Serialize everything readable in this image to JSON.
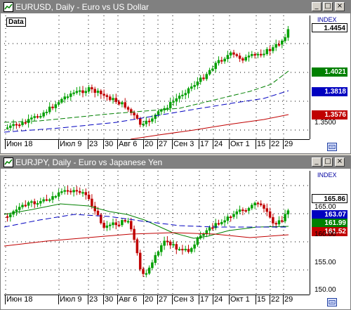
{
  "top_chart": {
    "title": "EURUSD, Daily - Euro vs US Dollar",
    "data_label": "Data",
    "index_label": "INDEX",
    "y_labels": [
      "1.3500"
    ],
    "price_tags": [
      {
        "value": "1.4454",
        "color": "#ffffff",
        "text_color": "#000000"
      },
      {
        "value": "1.4021",
        "color": "#008000",
        "text_color": "#ffffff"
      },
      {
        "value": "1.3818",
        "color": "#0000c0",
        "text_color": "#ffffff"
      },
      {
        "value": "1.3576",
        "color": "#c00000",
        "text_color": "#ffffff"
      }
    ],
    "x_labels": [
      "Июн 18",
      "Июл 9",
      "23",
      "30",
      "Авг 6",
      "20",
      "27",
      "Сен 3",
      "17",
      "24",
      "Окт 1",
      "15",
      "22",
      "29"
    ]
  },
  "bottom_chart": {
    "title": "EURJPY, Daily - Euro vs Japanese Yen",
    "index_label": "INDEX",
    "y_labels": [
      "165.00",
      "160.00",
      "155.00",
      "150.00"
    ],
    "price_tags": [
      {
        "value": "165.86",
        "color": "#ffffff",
        "text_color": "#000000"
      },
      {
        "value": "163.07",
        "color": "#0000c0",
        "text_color": "#ffffff"
      },
      {
        "value": "161.99",
        "color": "#008000",
        "text_color": "#ffffff"
      },
      {
        "value": "161.52",
        "color": "#c00000",
        "text_color": "#ffffff"
      }
    ],
    "x_labels": [
      "Июн 18",
      "Июл 9",
      "23",
      "30",
      "Авг 6",
      "20",
      "27",
      "Сен 3",
      "17",
      "24",
      "Окт 1",
      "15",
      "22",
      "29"
    ]
  },
  "colors": {
    "candle_up": "#00a000",
    "candle_down": "#c00000",
    "ma_short": "#008000",
    "ma_mid": "#0000c0",
    "ma_long": "#c00000"
  },
  "icons": [
    "chart-window-icon",
    "minimize-icon",
    "maximize-icon",
    "close-icon",
    "chart-settings-icon"
  ]
}
